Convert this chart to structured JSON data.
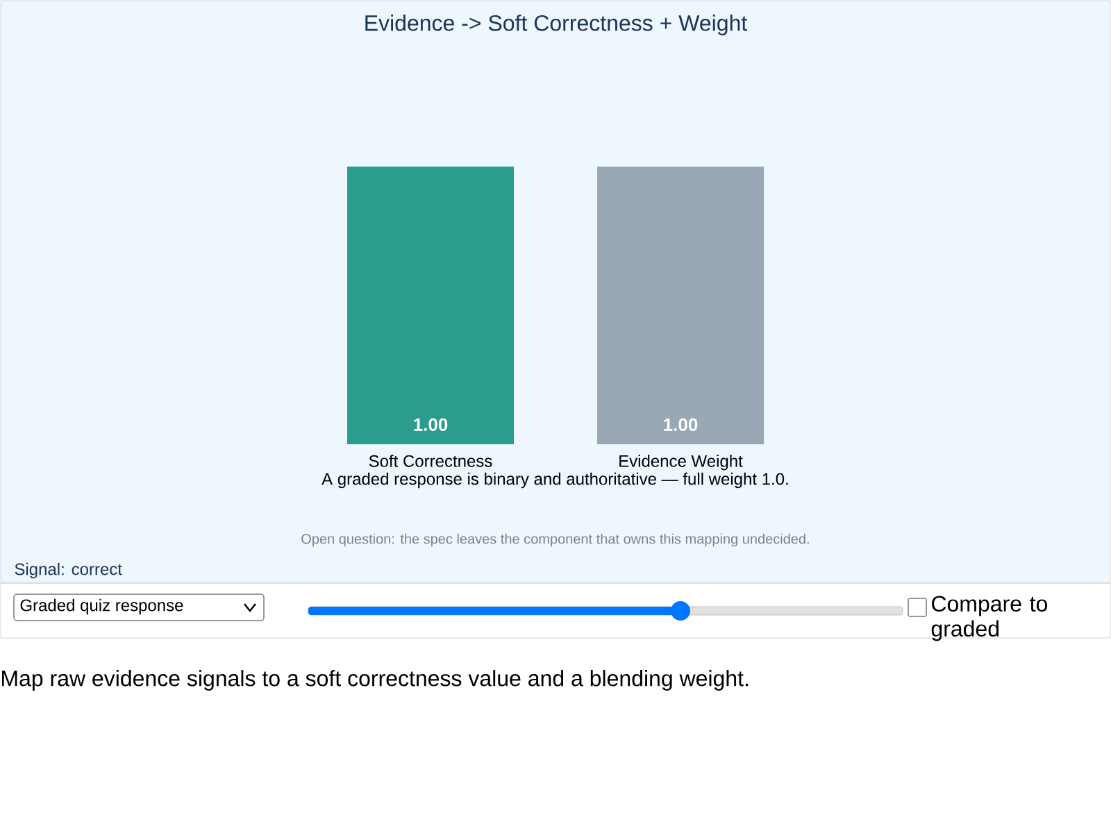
{
  "chart_data": {
    "type": "bar",
    "title": "Evidence -> Soft Correctness + Weight",
    "categories": [
      "Soft Correctness",
      "Evidence Weight"
    ],
    "values": [
      1,
      1
    ],
    "colors": [
      "#2a9d8f",
      "#9aa8b5"
    ],
    "value_labels": [
      "1.00",
      "1.00"
    ],
    "annotations": [
      "A graded response is binary and authoritative — full weight 1.0.",
      "Open question: the spec leaves the component that owns this mapping undecided.",
      "Signal: correct",
      "Graded quiz response",
      "Compare to graded",
      "Map raw evidence signals to a soft correctness value and a blending weight."
    ]
  }
}
